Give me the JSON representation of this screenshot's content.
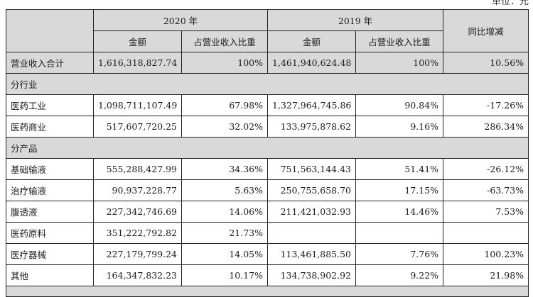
{
  "unit_note": "单位：元",
  "header": {
    "year_2020": "2020 年",
    "year_2019": "2019 年",
    "yoy": "同比增减",
    "amount": "金额",
    "share": "占营业收入比重"
  },
  "total": {
    "label": "营业收入合计",
    "amount_2020": "1,616,318,827.74",
    "share_2020": "100%",
    "amount_2019": "1,461,940,624.48",
    "share_2019": "100%",
    "yoy": "10.56%"
  },
  "sections": [
    {
      "title": "分行业",
      "rows": [
        {
          "label": "医药工业",
          "amount_2020": "1,098,711,107.49",
          "share_2020": "67.98%",
          "amount_2019": "1,327,964,745.86",
          "share_2019": "90.84%",
          "yoy": "-17.26%"
        },
        {
          "label": "医药商业",
          "amount_2020": "517,607,720.25",
          "share_2020": "32.02%",
          "amount_2019": "133,975,878.62",
          "share_2019": "9.16%",
          "yoy": "286.34%"
        }
      ]
    },
    {
      "title": "分产品",
      "rows": [
        {
          "label": "基础输液",
          "amount_2020": "555,288,427.99",
          "share_2020": "34.36%",
          "amount_2019": "751,563,144.43",
          "share_2019": "51.41%",
          "yoy": "-26.12%"
        },
        {
          "label": "治疗输液",
          "amount_2020": "90,937,228.77",
          "share_2020": "5.63%",
          "amount_2019": "250,755,658.70",
          "share_2019": "17.15%",
          "yoy": "-63.73%"
        },
        {
          "label": "腹透液",
          "amount_2020": "227,342,746.69",
          "share_2020": "14.06%",
          "amount_2019": "211,421,032.93",
          "share_2019": "14.46%",
          "yoy": "7.53%"
        },
        {
          "label": "医药原料",
          "amount_2020": "351,222,792.82",
          "share_2020": "21.73%",
          "amount_2019": "",
          "share_2019": "",
          "yoy": ""
        },
        {
          "label": "医疗器械",
          "amount_2020": "227,179,799.24",
          "share_2020": "14.05%",
          "amount_2019": "113,461,885.50",
          "share_2019": "7.76%",
          "yoy": "100.23%"
        },
        {
          "label": "其他",
          "amount_2020": "164,347,832.23",
          "share_2020": "10.17%",
          "amount_2019": "134,738,902.92",
          "share_2019": "9.22%",
          "yoy": "21.98%"
        }
      ]
    }
  ]
}
